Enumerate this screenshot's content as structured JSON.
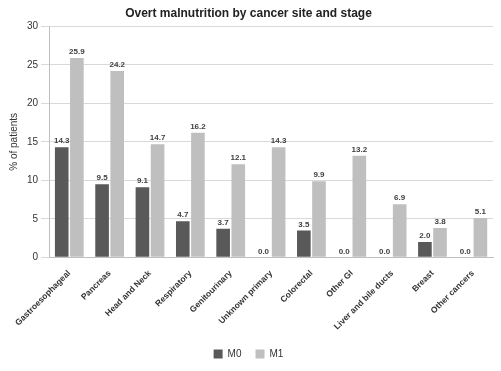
{
  "chart_data": {
    "type": "bar",
    "title": "Overt malnutrition by cancer site and stage",
    "y_label": "% of patients",
    "categories": [
      "Gastroesophageal",
      "Pancreas",
      "Head and Neck",
      "Respiratory",
      "Genitourinary",
      "Unknown primary",
      "Colorectal",
      "Other GI",
      "Liver and bile ducts",
      "Breast",
      "Other cancers"
    ],
    "series": [
      {
        "name": "M0",
        "color": "#595959",
        "values": [
          14.3,
          9.5,
          9.1,
          4.7,
          3.7,
          0.0,
          3.5,
          0.0,
          0.0,
          2.0,
          0.0
        ],
        "value_labels": [
          "14.3",
          "9.5",
          "9.1",
          "4.7",
          "3.7",
          "0.0",
          "3.5",
          "0.0",
          "0.0",
          "2.0",
          "0.0"
        ]
      },
      {
        "name": "M1",
        "color": "#bfbfbf",
        "values": [
          25.9,
          24.2,
          14.7,
          16.2,
          12.1,
          14.3,
          9.9,
          13.2,
          6.9,
          3.8,
          5.1
        ],
        "value_labels": [
          "25.9",
          "24.2",
          "14.7",
          "16.2",
          "12.1",
          "14.3",
          "9.9",
          "13.2",
          "6.9",
          "3.8",
          "5.1"
        ]
      }
    ],
    "ylim": [
      0,
      30
    ],
    "yticks": [
      0,
      5,
      10,
      15,
      20,
      25,
      30
    ],
    "grid": true,
    "legend": "bottom",
    "data_labels": true
  }
}
